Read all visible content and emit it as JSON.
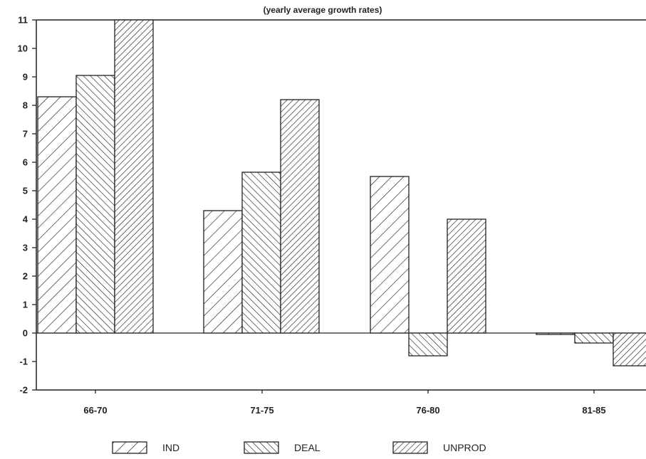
{
  "chart_data": {
    "type": "bar",
    "subtitle": "(yearly average growth rates)",
    "categories": [
      "66-70",
      "71-75",
      "76-80",
      "81-85"
    ],
    "series": [
      {
        "name": "IND",
        "values": [
          8.3,
          4.3,
          5.5,
          -0.05
        ],
        "pattern": "backslash"
      },
      {
        "name": "DEAL",
        "values": [
          9.05,
          5.65,
          -0.8,
          -0.35
        ],
        "pattern": "slash"
      },
      {
        "name": "UNPROD",
        "values": [
          11,
          8.2,
          4.0,
          -1.15
        ],
        "pattern": "backslash-dense"
      }
    ],
    "ylim": [
      -2,
      11
    ],
    "yticks": [
      -2,
      -1,
      0,
      1,
      2,
      3,
      4,
      5,
      6,
      7,
      8,
      9,
      10,
      11
    ],
    "grid": false,
    "legend_position": "bottom"
  },
  "colors": {
    "stroke": "#222222",
    "background": "#ffffff"
  }
}
